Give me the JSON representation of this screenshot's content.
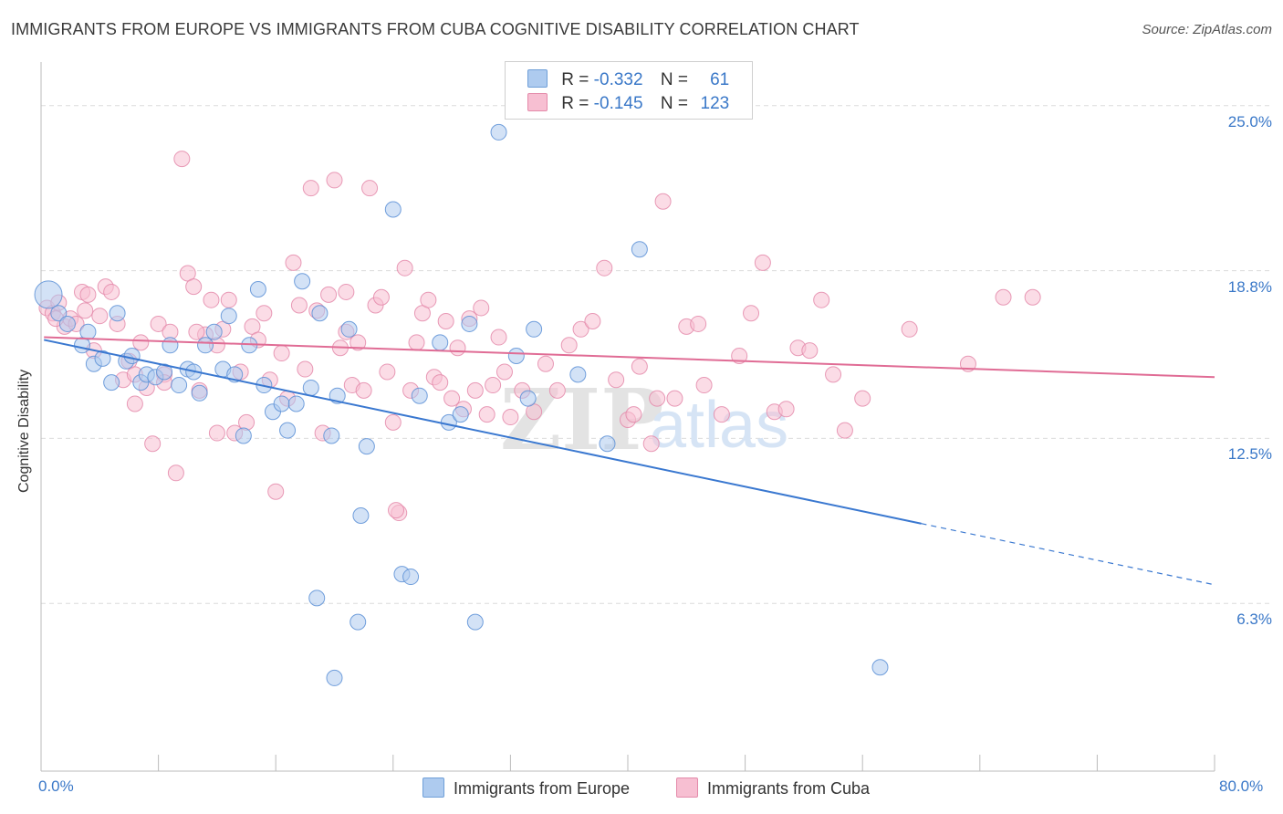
{
  "title": "IMMIGRANTS FROM EUROPE VS IMMIGRANTS FROM CUBA COGNITIVE DISABILITY CORRELATION CHART",
  "source": "Source: ZipAtlas.com",
  "watermark": {
    "zip": "ZIP",
    "atlas": "atlas"
  },
  "legend": {
    "rows": [
      {
        "r_label": "R =",
        "r_value": "-0.332",
        "n_label": "N =",
        "n_value": "61",
        "color": "#aecbef",
        "border": "#6f9fd8"
      },
      {
        "r_label": "R =",
        "r_value": "-0.145",
        "n_label": "N =",
        "n_value": "123",
        "color": "#f7bfd2",
        "border": "#e48aaa"
      }
    ]
  },
  "bottom_legend": [
    "Immigrants from Europe",
    "Immigrants from Cuba"
  ],
  "chart_data": {
    "type": "scatter",
    "title": "IMMIGRANTS FROM EUROPE VS IMMIGRANTS FROM CUBA COGNITIVE DISABILITY CORRELATION CHART",
    "xlabel": "",
    "ylabel": "Cognitive Disability",
    "xlim": [
      0,
      80
    ],
    "ylim": [
      0,
      26.5
    ],
    "x_tick_labels": [
      "0.0%",
      "80.0%"
    ],
    "y_ticks": [
      6.3,
      12.5,
      18.8,
      25.0
    ],
    "y_tick_labels": [
      "6.3%",
      "12.5%",
      "18.8%",
      "25.0%"
    ],
    "grid": "horizontal dashed",
    "legend_position": "top-center",
    "series": [
      {
        "name": "Immigrants from Europe",
        "color": "#aecbef",
        "stroke": "#5b8fd6",
        "trend": {
          "x0": 0.2,
          "y0": 16.2,
          "x1": 60,
          "y1": 9.3,
          "x_dash_end": 80,
          "y_dash_end": 7.0,
          "color": "#3a78d0"
        },
        "points": [
          [
            0.5,
            17.9
          ],
          [
            1.2,
            17.2
          ],
          [
            1.8,
            16.8
          ],
          [
            2.8,
            16.0
          ],
          [
            3.2,
            16.5
          ],
          [
            3.6,
            15.3
          ],
          [
            4.2,
            15.5
          ],
          [
            4.8,
            14.6
          ],
          [
            5.2,
            17.2
          ],
          [
            5.8,
            15.4
          ],
          [
            6.2,
            15.6
          ],
          [
            6.8,
            14.6
          ],
          [
            7.2,
            14.9
          ],
          [
            7.8,
            14.8
          ],
          [
            8.4,
            15.0
          ],
          [
            8.8,
            16.0
          ],
          [
            9.4,
            14.5
          ],
          [
            10.0,
            15.1
          ],
          [
            10.4,
            15.0
          ],
          [
            10.8,
            14.2
          ],
          [
            11.2,
            16.0
          ],
          [
            11.8,
            16.5
          ],
          [
            12.4,
            15.1
          ],
          [
            12.8,
            17.1
          ],
          [
            13.2,
            14.9
          ],
          [
            13.8,
            12.6
          ],
          [
            14.2,
            16.0
          ],
          [
            14.8,
            18.1
          ],
          [
            15.2,
            14.5
          ],
          [
            15.8,
            13.5
          ],
          [
            16.4,
            13.8
          ],
          [
            16.8,
            12.8
          ],
          [
            17.4,
            13.8
          ],
          [
            17.8,
            18.4
          ],
          [
            18.4,
            14.4
          ],
          [
            19.0,
            17.2
          ],
          [
            19.8,
            12.6
          ],
          [
            20.2,
            14.1
          ],
          [
            21.0,
            16.6
          ],
          [
            21.8,
            9.6
          ],
          [
            22.2,
            12.2
          ],
          [
            24.0,
            21.1
          ],
          [
            24.6,
            7.4
          ],
          [
            25.2,
            7.3
          ],
          [
            25.8,
            14.1
          ],
          [
            27.2,
            16.1
          ],
          [
            27.8,
            13.1
          ],
          [
            28.6,
            13.4
          ],
          [
            29.2,
            16.8
          ],
          [
            31.2,
            24.0
          ],
          [
            32.4,
            15.6
          ],
          [
            33.2,
            14.0
          ],
          [
            33.6,
            16.6
          ],
          [
            36.6,
            14.9
          ],
          [
            38.6,
            12.3
          ],
          [
            40.8,
            19.6
          ],
          [
            21.6,
            5.6
          ],
          [
            29.6,
            5.6
          ],
          [
            18.8,
            6.5
          ],
          [
            20.0,
            3.5
          ],
          [
            57.2,
            3.9
          ]
        ],
        "big_point_index": 0
      },
      {
        "name": "Immigrants from Cuba",
        "color": "#f7bfd2",
        "stroke": "#e48aaa",
        "trend": {
          "x0": 0.2,
          "y0": 16.3,
          "x1": 80,
          "y1": 14.8,
          "color": "#e06c95"
        },
        "points": [
          [
            0.4,
            17.4
          ],
          [
            0.8,
            17.2
          ],
          [
            1.2,
            17.6
          ],
          [
            1.6,
            16.7
          ],
          [
            2.0,
            17.0
          ],
          [
            2.4,
            16.8
          ],
          [
            2.8,
            18.0
          ],
          [
            3.2,
            17.9
          ],
          [
            3.6,
            15.8
          ],
          [
            4.0,
            17.1
          ],
          [
            4.4,
            18.2
          ],
          [
            4.8,
            18.0
          ],
          [
            5.2,
            16.8
          ],
          [
            5.6,
            14.7
          ],
          [
            6.0,
            15.4
          ],
          [
            6.4,
            13.8
          ],
          [
            6.8,
            16.1
          ],
          [
            7.2,
            14.4
          ],
          [
            7.6,
            12.3
          ],
          [
            8.0,
            16.8
          ],
          [
            8.4,
            14.9
          ],
          [
            8.8,
            16.5
          ],
          [
            9.2,
            11.2
          ],
          [
            9.6,
            23.0
          ],
          [
            10.0,
            18.7
          ],
          [
            10.4,
            18.2
          ],
          [
            10.8,
            14.3
          ],
          [
            11.2,
            16.4
          ],
          [
            11.6,
            17.7
          ],
          [
            12.0,
            12.7
          ],
          [
            12.4,
            16.6
          ],
          [
            12.8,
            17.7
          ],
          [
            13.2,
            12.7
          ],
          [
            13.6,
            15.0
          ],
          [
            14.0,
            13.1
          ],
          [
            14.4,
            16.7
          ],
          [
            14.8,
            16.2
          ],
          [
            15.2,
            17.2
          ],
          [
            15.6,
            14.7
          ],
          [
            16.0,
            10.5
          ],
          [
            16.4,
            15.7
          ],
          [
            16.8,
            14.0
          ],
          [
            17.2,
            19.1
          ],
          [
            17.6,
            17.5
          ],
          [
            18.0,
            15.1
          ],
          [
            18.4,
            21.9
          ],
          [
            18.8,
            17.3
          ],
          [
            19.2,
            12.7
          ],
          [
            19.6,
            17.9
          ],
          [
            20.0,
            22.2
          ],
          [
            20.4,
            15.9
          ],
          [
            20.8,
            18.0
          ],
          [
            21.2,
            14.5
          ],
          [
            21.6,
            16.1
          ],
          [
            22.0,
            14.3
          ],
          [
            22.4,
            21.9
          ],
          [
            22.8,
            17.5
          ],
          [
            23.2,
            17.8
          ],
          [
            23.6,
            15.0
          ],
          [
            24.0,
            13.1
          ],
          [
            24.4,
            9.7
          ],
          [
            24.8,
            18.9
          ],
          [
            25.2,
            14.3
          ],
          [
            25.6,
            16.1
          ],
          [
            26.0,
            17.2
          ],
          [
            26.4,
            17.7
          ],
          [
            26.8,
            14.8
          ],
          [
            27.2,
            14.6
          ],
          [
            27.6,
            16.9
          ],
          [
            28.0,
            14.0
          ],
          [
            28.4,
            15.9
          ],
          [
            28.8,
            13.6
          ],
          [
            29.2,
            17.0
          ],
          [
            29.6,
            14.3
          ],
          [
            30.0,
            17.4
          ],
          [
            30.4,
            13.4
          ],
          [
            30.8,
            14.5
          ],
          [
            31.2,
            16.3
          ],
          [
            31.6,
            15.0
          ],
          [
            32.0,
            13.3
          ],
          [
            32.8,
            14.3
          ],
          [
            33.6,
            13.5
          ],
          [
            34.4,
            15.3
          ],
          [
            35.2,
            14.3
          ],
          [
            36.0,
            16.0
          ],
          [
            36.8,
            16.6
          ],
          [
            37.6,
            16.9
          ],
          [
            38.4,
            18.9
          ],
          [
            39.2,
            14.7
          ],
          [
            40.0,
            13.2
          ],
          [
            40.4,
            13.4
          ],
          [
            40.8,
            15.2
          ],
          [
            41.6,
            12.3
          ],
          [
            42.4,
            21.4
          ],
          [
            43.2,
            14.0
          ],
          [
            44.0,
            16.7
          ],
          [
            45.2,
            14.5
          ],
          [
            46.4,
            13.4
          ],
          [
            47.6,
            15.6
          ],
          [
            48.4,
            17.2
          ],
          [
            49.2,
            19.1
          ],
          [
            50.0,
            13.5
          ],
          [
            50.8,
            13.6
          ],
          [
            51.6,
            15.9
          ],
          [
            52.4,
            15.8
          ],
          [
            53.2,
            17.7
          ],
          [
            54.0,
            14.9
          ],
          [
            54.8,
            12.8
          ],
          [
            56.0,
            14.0
          ],
          [
            59.2,
            16.6
          ],
          [
            63.2,
            15.3
          ],
          [
            65.6,
            17.8
          ],
          [
            67.6,
            17.8
          ],
          [
            1.0,
            17.0
          ],
          [
            3.0,
            17.3
          ],
          [
            6.4,
            14.9
          ],
          [
            10.6,
            16.5
          ],
          [
            20.8,
            16.5
          ],
          [
            24.2,
            9.8
          ],
          [
            42.0,
            14.0
          ],
          [
            8.4,
            14.6
          ],
          [
            12.0,
            16.0
          ],
          [
            44.8,
            16.8
          ]
        ]
      }
    ]
  }
}
